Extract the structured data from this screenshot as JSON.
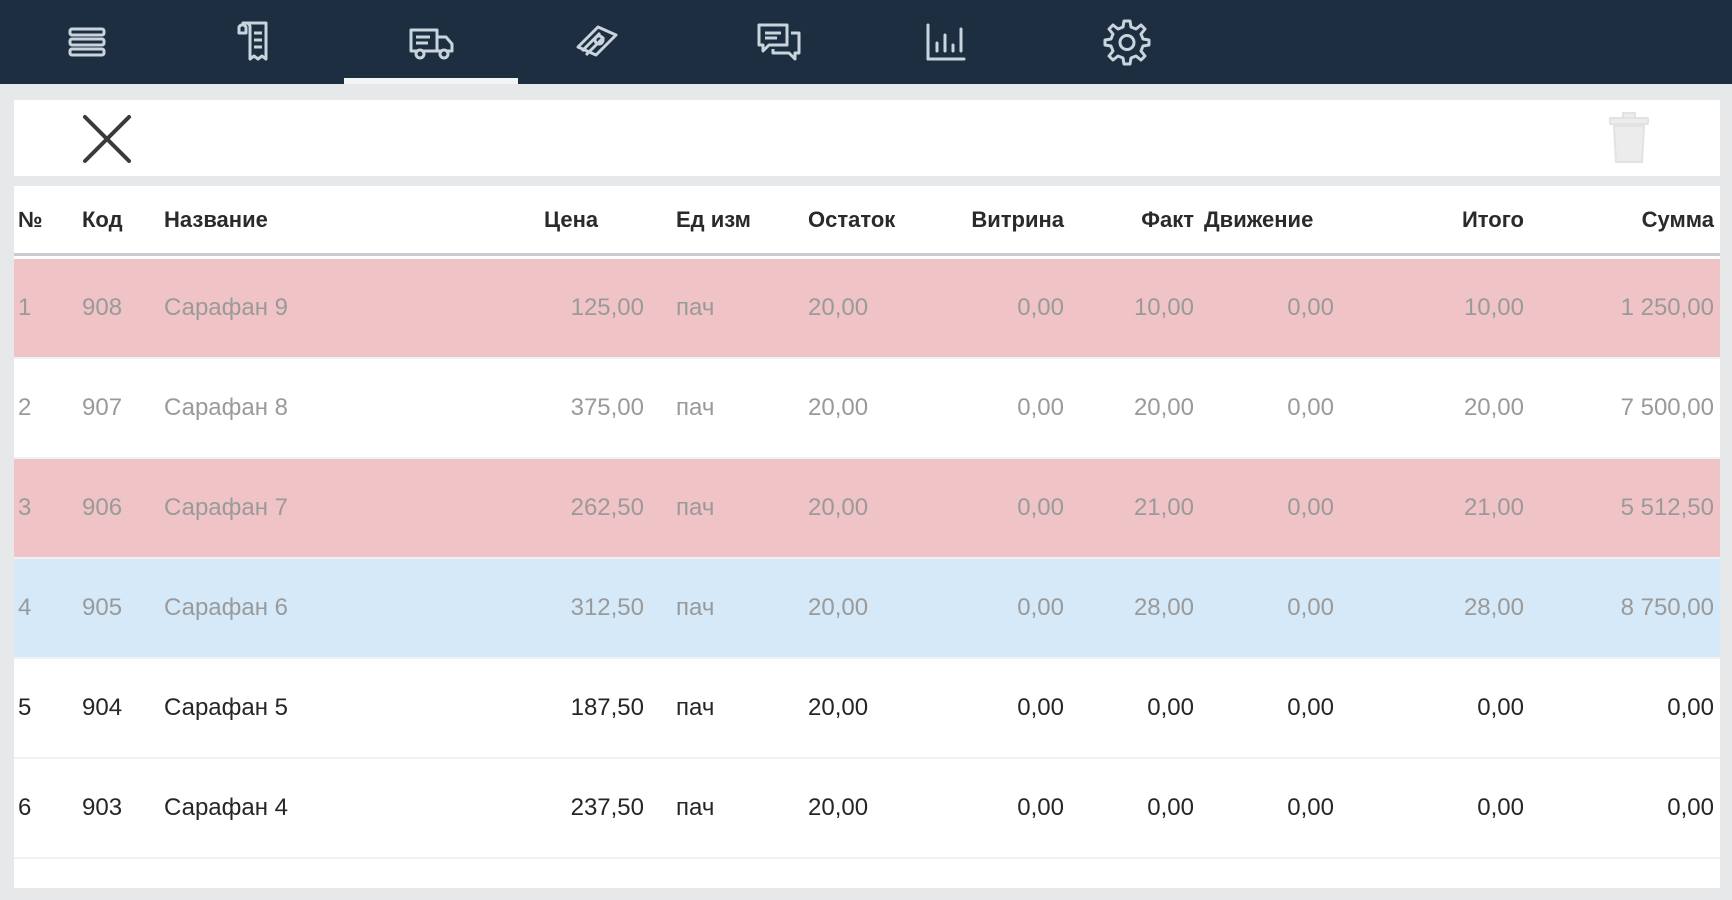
{
  "nav": {
    "items": [
      {
        "icon": "menu-icon"
      },
      {
        "icon": "receipt-icon"
      },
      {
        "icon": "delivery-truck-icon",
        "active": true
      },
      {
        "icon": "money-icon"
      },
      {
        "icon": "chat-icon"
      },
      {
        "icon": "bar-chart-icon"
      },
      {
        "icon": "gear-icon"
      }
    ]
  },
  "toolbar": {
    "close_icon": "close-icon",
    "delete_icon": "trash-icon"
  },
  "table": {
    "columns": [
      "№",
      "Код",
      "Название",
      "Цена",
      "Ед изм",
      "Остаток",
      "Витрина",
      "Факт",
      "Движение",
      "Итого",
      "Сумма"
    ],
    "rows": [
      {
        "cells": [
          "1",
          "908",
          "Сарафан 9",
          "125,00",
          "пач",
          "20,00",
          "0,00",
          "10,00",
          "0,00",
          "10,00",
          "1 250,00"
        ],
        "highlight": "#f0c4c6"
      },
      {
        "cells": [
          "2",
          "907",
          "Сарафан 8",
          "375,00",
          "пач",
          "20,00",
          "0,00",
          "20,00",
          "0,00",
          "20,00",
          "7 500,00"
        ],
        "highlight": "#ffffff"
      },
      {
        "cells": [
          "3",
          "906",
          "Сарафан 7",
          "262,50",
          "пач",
          "20,00",
          "0,00",
          "21,00",
          "0,00",
          "21,00",
          "5 512,50"
        ],
        "highlight": "#f0c4c6"
      },
      {
        "cells": [
          "4",
          "905",
          "Сарафан 6",
          "312,50",
          "пач",
          "20,00",
          "0,00",
          "28,00",
          "0,00",
          "28,00",
          "8 750,00"
        ],
        "highlight": "#d6e9f8"
      },
      {
        "cells": [
          "5",
          "904",
          "Сарафан 5",
          "187,50",
          "пач",
          "20,00",
          "0,00",
          "0,00",
          "0,00",
          "0,00",
          "0,00"
        ],
        "highlight": "#ffffff"
      },
      {
        "cells": [
          "6",
          "903",
          "Сарафан 4",
          "237,50",
          "пач",
          "20,00",
          "0,00",
          "0,00",
          "0,00",
          "0,00",
          "0,00"
        ],
        "highlight": "#ffffff"
      }
    ]
  },
  "colors": {
    "nav_bg": "#1c2e40",
    "nav_icon": "#c9d4dd",
    "row_pink": "#f0c4c6",
    "row_blue": "#d6e9f8",
    "text_dim": "#9a9a9a",
    "text_normal": "#262626"
  }
}
